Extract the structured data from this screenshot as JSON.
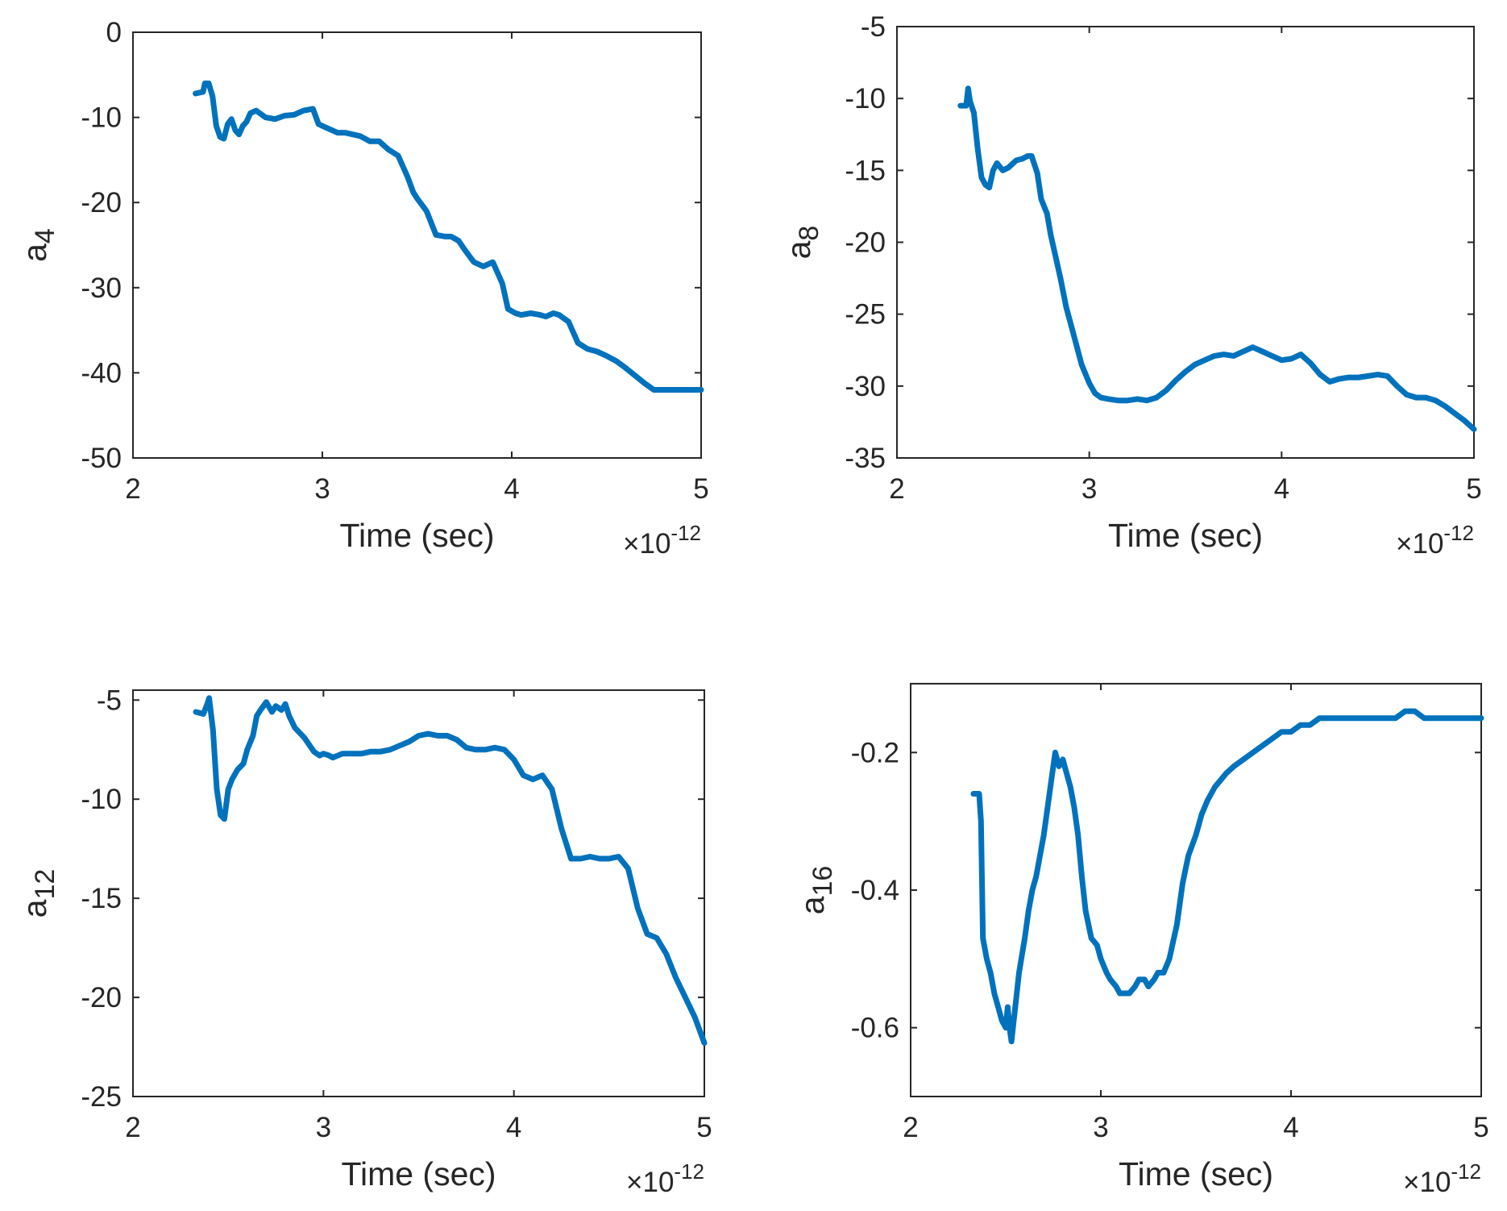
{
  "figure_title": "",
  "colors": {
    "series": "#0072BD",
    "axes": "#262626",
    "background": "#ffffff"
  },
  "chart_data": [
    {
      "type": "line",
      "panel": "top-left",
      "title": "",
      "xlabel": "Time (sec)",
      "ylabel_base": "a",
      "ylabel_sub": "4",
      "x_exponent_base": "×10",
      "x_exponent_power": "-12",
      "xlim": [
        2,
        5
      ],
      "ylim": [
        -50,
        0
      ],
      "xticks": [
        2,
        3,
        4,
        5
      ],
      "xtick_labels": [
        "2",
        "3",
        "4",
        "5"
      ],
      "yticks": [
        -50,
        -40,
        -30,
        -20,
        -10,
        0
      ],
      "ytick_labels": [
        "-50",
        "-40",
        "-30",
        "-20",
        "-10",
        "0"
      ],
      "grid": false,
      "series": [
        {
          "name": "a4",
          "x": [
            2.33,
            2.37,
            2.38,
            2.4,
            2.42,
            2.44,
            2.46,
            2.48,
            2.5,
            2.52,
            2.54,
            2.56,
            2.58,
            2.6,
            2.62,
            2.65,
            2.7,
            2.75,
            2.8,
            2.85,
            2.9,
            2.95,
            2.98,
            3.02,
            3.08,
            3.12,
            3.2,
            3.25,
            3.3,
            3.35,
            3.4,
            3.45,
            3.48,
            3.5,
            3.55,
            3.6,
            3.65,
            3.68,
            3.72,
            3.75,
            3.8,
            3.85,
            3.9,
            3.95,
            3.98,
            4.02,
            4.05,
            4.1,
            4.15,
            4.18,
            4.22,
            4.25,
            4.3,
            4.35,
            4.4,
            4.45,
            4.5,
            4.55,
            4.6,
            4.65,
            4.7,
            4.75,
            4.8,
            4.85,
            4.9,
            4.95,
            5.0
          ],
          "y": [
            -7.2,
            -7.0,
            -6.0,
            -6.0,
            -7.5,
            -11.0,
            -12.3,
            -12.5,
            -10.8,
            -10.2,
            -11.5,
            -12.0,
            -11.0,
            -10.5,
            -9.5,
            -9.2,
            -10.0,
            -10.2,
            -9.8,
            -9.7,
            -9.2,
            -9.0,
            -10.8,
            -11.2,
            -11.8,
            -11.8,
            -12.2,
            -12.8,
            -12.8,
            -13.8,
            -14.5,
            -17.0,
            -18.8,
            -19.5,
            -21.0,
            -23.8,
            -24.0,
            -24.0,
            -24.5,
            -25.5,
            -27.0,
            -27.5,
            -27.0,
            -29.5,
            -32.5,
            -33.0,
            -33.2,
            -33.0,
            -33.2,
            -33.4,
            -33.0,
            -33.2,
            -34.0,
            -36.5,
            -37.2,
            -37.5,
            -38.0,
            -38.6,
            -39.4,
            -40.3,
            -41.2,
            -42.0,
            -42.0,
            -42.0,
            -42.0,
            -42.0,
            -42.0
          ]
        }
      ]
    },
    {
      "type": "line",
      "panel": "top-right",
      "title": "",
      "xlabel": "Time (sec)",
      "ylabel_base": "a",
      "ylabel_sub": "8",
      "x_exponent_base": "×10",
      "x_exponent_power": "-12",
      "xlim": [
        2,
        5
      ],
      "ylim": [
        -35,
        -5
      ],
      "xticks": [
        2,
        3,
        4,
        5
      ],
      "xtick_labels": [
        "2",
        "3",
        "4",
        "5"
      ],
      "yticks": [
        -35,
        -30,
        -25,
        -20,
        -15,
        -10,
        -5
      ],
      "ytick_labels": [
        "-35",
        "-30",
        "-25",
        "-20",
        "-15",
        "-10",
        "-5"
      ],
      "grid": false,
      "series": [
        {
          "name": "a8",
          "x": [
            2.33,
            2.36,
            2.37,
            2.38,
            2.4,
            2.42,
            2.44,
            2.46,
            2.48,
            2.5,
            2.52,
            2.55,
            2.58,
            2.62,
            2.65,
            2.68,
            2.7,
            2.73,
            2.75,
            2.78,
            2.8,
            2.85,
            2.88,
            2.9,
            2.93,
            2.96,
            3.0,
            3.03,
            3.06,
            3.1,
            3.15,
            3.2,
            3.25,
            3.3,
            3.35,
            3.4,
            3.45,
            3.5,
            3.55,
            3.6,
            3.65,
            3.7,
            3.75,
            3.8,
            3.85,
            3.9,
            3.95,
            4.0,
            4.05,
            4.1,
            4.15,
            4.2,
            4.25,
            4.3,
            4.35,
            4.4,
            4.45,
            4.5,
            4.55,
            4.6,
            4.65,
            4.7,
            4.75,
            4.8,
            4.85,
            4.9,
            4.95,
            5.0
          ],
          "y": [
            -10.5,
            -10.5,
            -9.3,
            -10.2,
            -11.0,
            -13.5,
            -15.5,
            -16.0,
            -16.2,
            -15.0,
            -14.5,
            -15.0,
            -14.8,
            -14.3,
            -14.2,
            -14.0,
            -14.0,
            -15.2,
            -17.0,
            -18.0,
            -19.5,
            -22.5,
            -24.5,
            -25.5,
            -27.0,
            -28.5,
            -29.8,
            -30.5,
            -30.8,
            -30.9,
            -31.0,
            -31.0,
            -30.9,
            -31.0,
            -30.8,
            -30.3,
            -29.6,
            -29.0,
            -28.5,
            -28.2,
            -27.9,
            -27.8,
            -27.9,
            -27.6,
            -27.3,
            -27.6,
            -27.9,
            -28.2,
            -28.1,
            -27.8,
            -28.4,
            -29.2,
            -29.7,
            -29.5,
            -29.4,
            -29.4,
            -29.3,
            -29.2,
            -29.3,
            -30.0,
            -30.6,
            -30.8,
            -30.8,
            -31.0,
            -31.4,
            -31.9,
            -32.4,
            -33.0
          ]
        }
      ]
    },
    {
      "type": "line",
      "panel": "bottom-left",
      "title": "",
      "xlabel": "Time (sec)",
      "ylabel_base": "a",
      "ylabel_sub": "12",
      "x_exponent_base": "×10",
      "x_exponent_power": "-12",
      "xlim": [
        2,
        5
      ],
      "ylim": [
        -25,
        -4.5
      ],
      "xticks": [
        2,
        3,
        4,
        5
      ],
      "xtick_labels": [
        "2",
        "3",
        "4",
        "5"
      ],
      "yticks": [
        -25,
        -20,
        -15,
        -10,
        -5
      ],
      "ytick_labels": [
        "-25",
        "-20",
        "-15",
        "-10",
        "-5"
      ],
      "grid": false,
      "series": [
        {
          "name": "a12",
          "x": [
            2.33,
            2.37,
            2.39,
            2.4,
            2.42,
            2.44,
            2.46,
            2.48,
            2.5,
            2.52,
            2.55,
            2.58,
            2.6,
            2.63,
            2.65,
            2.67,
            2.7,
            2.73,
            2.75,
            2.78,
            2.8,
            2.82,
            2.85,
            2.9,
            2.95,
            2.98,
            3.0,
            3.03,
            3.05,
            3.1,
            3.15,
            3.2,
            3.25,
            3.3,
            3.35,
            3.4,
            3.45,
            3.5,
            3.55,
            3.6,
            3.65,
            3.7,
            3.75,
            3.8,
            3.85,
            3.9,
            3.95,
            4.0,
            4.05,
            4.1,
            4.15,
            4.2,
            4.25,
            4.3,
            4.35,
            4.4,
            4.45,
            4.5,
            4.55,
            4.6,
            4.65,
            4.7,
            4.75,
            4.8,
            4.85,
            4.9,
            4.95,
            5.0
          ],
          "y": [
            -5.6,
            -5.7,
            -5.2,
            -4.9,
            -6.5,
            -9.5,
            -10.8,
            -11.0,
            -9.5,
            -9.0,
            -8.5,
            -8.2,
            -7.5,
            -6.8,
            -5.8,
            -5.5,
            -5.1,
            -5.6,
            -5.3,
            -5.5,
            -5.2,
            -5.8,
            -6.4,
            -6.9,
            -7.6,
            -7.8,
            -7.7,
            -7.8,
            -7.9,
            -7.7,
            -7.7,
            -7.7,
            -7.6,
            -7.6,
            -7.5,
            -7.3,
            -7.1,
            -6.8,
            -6.7,
            -6.8,
            -6.8,
            -7.0,
            -7.4,
            -7.5,
            -7.5,
            -7.4,
            -7.5,
            -8.0,
            -8.8,
            -9.0,
            -8.8,
            -9.5,
            -11.5,
            -13.0,
            -13.0,
            -12.9,
            -13.0,
            -13.0,
            -12.9,
            -13.5,
            -15.5,
            -16.8,
            -17.0,
            -17.8,
            -19.0,
            -20.0,
            -21.0,
            -22.3
          ]
        }
      ]
    },
    {
      "type": "line",
      "panel": "bottom-right",
      "title": "",
      "xlabel": "Time (sec)",
      "ylabel_base": "a",
      "ylabel_sub": "16",
      "x_exponent_base": "×10",
      "x_exponent_power": "-12",
      "xlim": [
        2,
        5
      ],
      "ylim": [
        -0.7,
        -0.1
      ],
      "xticks": [
        2,
        3,
        4,
        5
      ],
      "xtick_labels": [
        "2",
        "3",
        "4",
        "5"
      ],
      "yticks": [
        -0.6,
        -0.4,
        -0.2
      ],
      "ytick_labels": [
        "-0.6",
        "-0.4",
        "-0.2"
      ],
      "grid": false,
      "series": [
        {
          "name": "a16",
          "x": [
            2.33,
            2.36,
            2.37,
            2.38,
            2.4,
            2.42,
            2.44,
            2.46,
            2.48,
            2.5,
            2.51,
            2.52,
            2.53,
            2.55,
            2.57,
            2.6,
            2.62,
            2.64,
            2.66,
            2.68,
            2.7,
            2.72,
            2.74,
            2.76,
            2.78,
            2.8,
            2.82,
            2.84,
            2.86,
            2.88,
            2.9,
            2.92,
            2.95,
            2.98,
            3.0,
            3.03,
            3.05,
            3.08,
            3.1,
            3.15,
            3.18,
            3.2,
            3.23,
            3.25,
            3.28,
            3.3,
            3.33,
            3.36,
            3.4,
            3.43,
            3.46,
            3.5,
            3.53,
            3.56,
            3.6,
            3.63,
            3.66,
            3.7,
            3.75,
            3.8,
            3.85,
            3.9,
            3.95,
            4.0,
            4.05,
            4.1,
            4.15,
            4.2,
            4.25,
            4.3,
            4.35,
            4.4,
            4.45,
            4.5,
            4.55,
            4.6,
            4.65,
            4.7,
            4.75,
            4.8,
            4.85,
            4.9,
            4.95,
            5.0
          ],
          "y": [
            -0.26,
            -0.26,
            -0.3,
            -0.47,
            -0.5,
            -0.52,
            -0.55,
            -0.57,
            -0.59,
            -0.6,
            -0.57,
            -0.6,
            -0.62,
            -0.57,
            -0.52,
            -0.47,
            -0.43,
            -0.4,
            -0.38,
            -0.35,
            -0.32,
            -0.28,
            -0.24,
            -0.2,
            -0.22,
            -0.21,
            -0.23,
            -0.25,
            -0.28,
            -0.32,
            -0.38,
            -0.43,
            -0.47,
            -0.48,
            -0.5,
            -0.52,
            -0.53,
            -0.54,
            -0.55,
            -0.55,
            -0.54,
            -0.53,
            -0.53,
            -0.54,
            -0.53,
            -0.52,
            -0.52,
            -0.5,
            -0.45,
            -0.39,
            -0.35,
            -0.32,
            -0.29,
            -0.27,
            -0.25,
            -0.24,
            -0.23,
            -0.22,
            -0.21,
            -0.2,
            -0.19,
            -0.18,
            -0.17,
            -0.17,
            -0.16,
            -0.16,
            -0.15,
            -0.15,
            -0.15,
            -0.15,
            -0.15,
            -0.15,
            -0.15,
            -0.15,
            -0.15,
            -0.14,
            -0.14,
            -0.15,
            -0.15,
            -0.15,
            -0.15,
            -0.15,
            -0.15,
            -0.15
          ]
        }
      ]
    }
  ]
}
